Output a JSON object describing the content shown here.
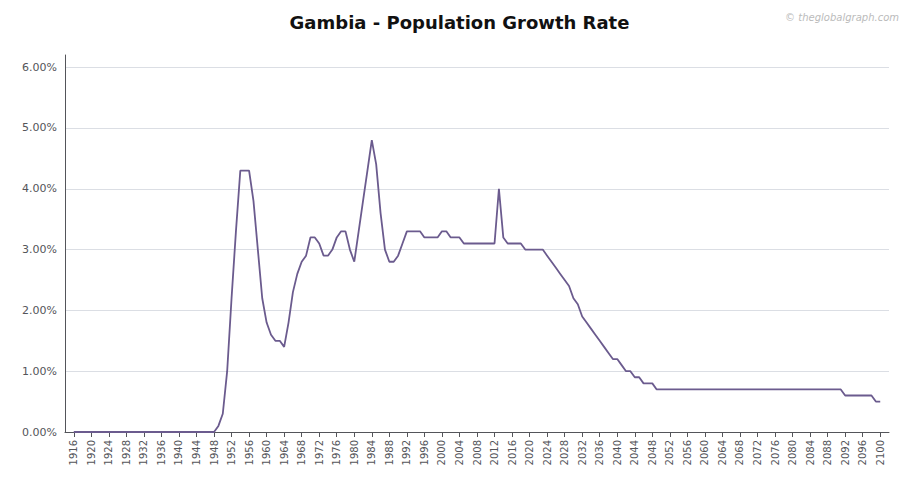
{
  "chart_data": {
    "type": "line",
    "title": "Gambia - Population Growth Rate",
    "annotations": [
      "© theglobalgraph.com"
    ],
    "color": "#6b5b8e",
    "grid": "y",
    "x": [
      1916,
      1917,
      1918,
      1919,
      1920,
      1921,
      1922,
      1923,
      1924,
      1925,
      1926,
      1927,
      1928,
      1929,
      1930,
      1931,
      1932,
      1933,
      1934,
      1935,
      1936,
      1937,
      1938,
      1939,
      1940,
      1941,
      1942,
      1943,
      1944,
      1945,
      1946,
      1947,
      1948,
      1949,
      1950,
      1951,
      1952,
      1953,
      1954,
      1955,
      1956,
      1957,
      1958,
      1959,
      1960,
      1961,
      1962,
      1963,
      1964,
      1965,
      1966,
      1967,
      1968,
      1969,
      1970,
      1971,
      1972,
      1973,
      1974,
      1975,
      1976,
      1977,
      1978,
      1979,
      1980,
      1981,
      1982,
      1983,
      1984,
      1985,
      1986,
      1987,
      1988,
      1989,
      1990,
      1991,
      1992,
      1993,
      1994,
      1995,
      1996,
      1997,
      1998,
      1999,
      2000,
      2001,
      2002,
      2003,
      2004,
      2005,
      2006,
      2007,
      2008,
      2009,
      2010,
      2011,
      2012,
      2013,
      2014,
      2015,
      2016,
      2017,
      2018,
      2019,
      2020,
      2021,
      2022,
      2023,
      2024,
      2025,
      2026,
      2027,
      2028,
      2029,
      2030,
      2031,
      2032,
      2033,
      2034,
      2035,
      2036,
      2037,
      2038,
      2039,
      2040,
      2041,
      2042,
      2043,
      2044,
      2045,
      2046,
      2047,
      2048,
      2049,
      2050,
      2051,
      2052,
      2053,
      2054,
      2055,
      2056,
      2057,
      2058,
      2059,
      2060,
      2061,
      2062,
      2063,
      2064,
      2065,
      2066,
      2067,
      2068,
      2069,
      2070,
      2071,
      2072,
      2073,
      2074,
      2075,
      2076,
      2077,
      2078,
      2079,
      2080,
      2081,
      2082,
      2083,
      2084,
      2085,
      2086,
      2087,
      2088,
      2089,
      2090,
      2091,
      2092,
      2093,
      2094,
      2095,
      2096,
      2097,
      2098,
      2099,
      2100
    ],
    "values": [
      0.0,
      0.0,
      0.0,
      0.0,
      0.0,
      0.0,
      0.0,
      0.0,
      0.0,
      0.0,
      0.0,
      0.0,
      0.0,
      0.0,
      0.0,
      0.0,
      0.0,
      0.0,
      0.0,
      0.0,
      0.0,
      0.0,
      0.0,
      0.0,
      0.0,
      0.0,
      0.0,
      0.0,
      0.0,
      0.0,
      0.0,
      0.0,
      0.0,
      0.001,
      0.003,
      0.01,
      0.022,
      0.033,
      0.043,
      0.043,
      0.043,
      0.038,
      0.03,
      0.022,
      0.018,
      0.016,
      0.015,
      0.015,
      0.014,
      0.018,
      0.023,
      0.026,
      0.028,
      0.029,
      0.032,
      0.032,
      0.031,
      0.029,
      0.029,
      0.03,
      0.032,
      0.033,
      0.033,
      0.03,
      0.028,
      0.033,
      0.038,
      0.043,
      0.048,
      0.044,
      0.036,
      0.03,
      0.028,
      0.028,
      0.029,
      0.031,
      0.033,
      0.033,
      0.033,
      0.033,
      0.032,
      0.032,
      0.032,
      0.032,
      0.033,
      0.033,
      0.032,
      0.032,
      0.032,
      0.031,
      0.031,
      0.031,
      0.031,
      0.031,
      0.031,
      0.031,
      0.031,
      0.04,
      0.032,
      0.031,
      0.031,
      0.031,
      0.031,
      0.03,
      0.03,
      0.03,
      0.03,
      0.03,
      0.029,
      0.028,
      0.027,
      0.026,
      0.025,
      0.024,
      0.022,
      0.021,
      0.019,
      0.018,
      0.017,
      0.016,
      0.015,
      0.014,
      0.013,
      0.012,
      0.012,
      0.011,
      0.01,
      0.01,
      0.009,
      0.009,
      0.008,
      0.008,
      0.008,
      0.007,
      0.007,
      0.007,
      0.007,
      0.007,
      0.007,
      0.007,
      0.007,
      0.007,
      0.007,
      0.007,
      0.007,
      0.007,
      0.007,
      0.007,
      0.007,
      0.007,
      0.007,
      0.007,
      0.007,
      0.007,
      0.007,
      0.007,
      0.007,
      0.007,
      0.007,
      0.007,
      0.007,
      0.007,
      0.007,
      0.007,
      0.007,
      0.007,
      0.007,
      0.007,
      0.007,
      0.007,
      0.007,
      0.007,
      0.007,
      0.007,
      0.007,
      0.007,
      0.006,
      0.006,
      0.006,
      0.006,
      0.006,
      0.006,
      0.006,
      0.005,
      0.005
    ],
    "xlim": [
      1914,
      2102
    ],
    "xticks": [
      1916,
      1920,
      1924,
      1928,
      1932,
      1936,
      1940,
      1944,
      1948,
      1952,
      1956,
      1960,
      1964,
      1968,
      1972,
      1976,
      1980,
      1984,
      1988,
      1992,
      1996,
      2000,
      2004,
      2008,
      2012,
      2016,
      2020,
      2024,
      2028,
      2032,
      2036,
      2040,
      2044,
      2048,
      2052,
      2056,
      2060,
      2064,
      2068,
      2072,
      2076,
      2080,
      2084,
      2088,
      2092,
      2096,
      2100
    ],
    "ylim": [
      0.0,
      0.062
    ],
    "yticks": [
      {
        "value": 0.0,
        "label": "0.00%"
      },
      {
        "value": 0.01,
        "label": "1.00%"
      },
      {
        "value": 0.02,
        "label": "2.00%"
      },
      {
        "value": 0.03,
        "label": "3.00%"
      },
      {
        "value": 0.04,
        "label": "4.00%"
      },
      {
        "value": 0.05,
        "label": "5.00%"
      },
      {
        "value": 0.06,
        "label": "6.00%"
      }
    ]
  }
}
